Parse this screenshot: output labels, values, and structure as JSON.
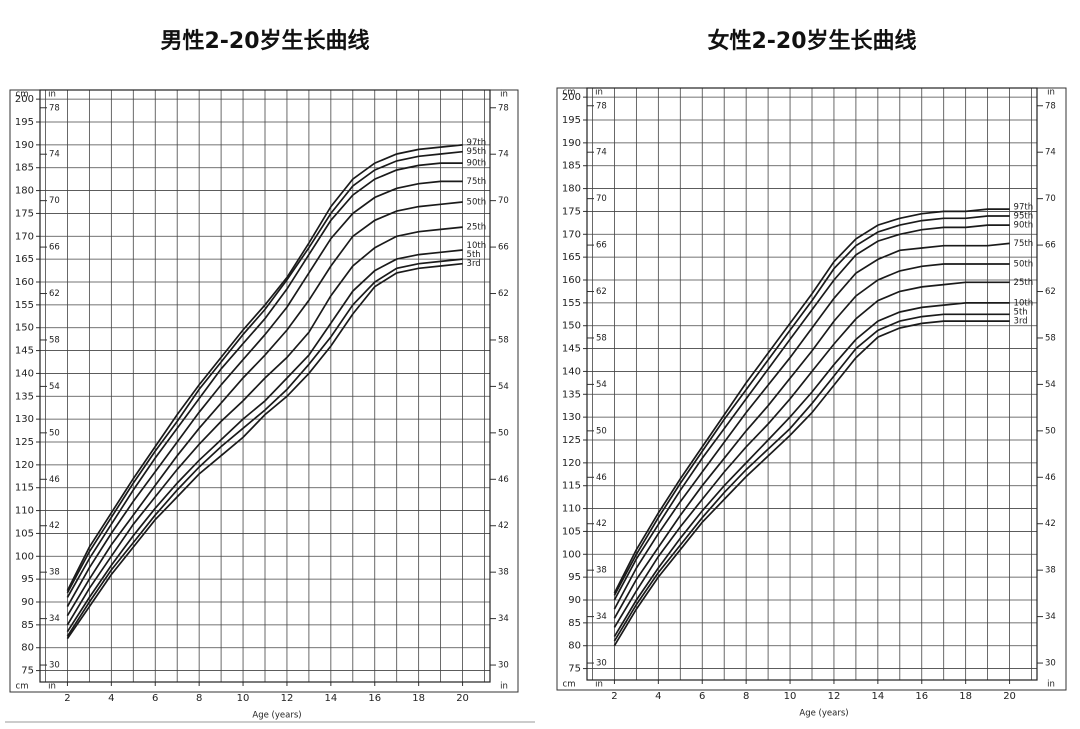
{
  "chart_data": [
    {
      "type": "line",
      "title": "男性2-20岁生长曲线",
      "x_label": "Age (years)",
      "y_unit": "cm",
      "y2_unit": "in",
      "x": [
        2,
        3,
        4,
        5,
        6,
        7,
        8,
        9,
        10,
        11,
        12,
        13,
        14,
        15,
        16,
        17,
        18,
        19,
        20
      ],
      "xlim": [
        0.75,
        21.25
      ],
      "xticks": [
        2,
        4,
        6,
        8,
        10,
        12,
        14,
        16,
        18,
        20
      ],
      "xgrid_minor": [
        1,
        3,
        5,
        7,
        9,
        11,
        13,
        15,
        17,
        19,
        21
      ],
      "ylim": [
        72.5,
        202
      ],
      "yticks": [
        75,
        80,
        85,
        90,
        95,
        100,
        105,
        110,
        115,
        120,
        125,
        130,
        135,
        140,
        145,
        150,
        155,
        160,
        165,
        170,
        175,
        180,
        185,
        190,
        195,
        200
      ],
      "y2lim": [
        28.54,
        79.53
      ],
      "y2ticks": [
        30,
        34,
        38,
        42,
        46,
        50,
        54,
        58,
        62,
        66,
        70,
        74,
        78
      ],
      "grid": true,
      "series": [
        {
          "name": "3rd",
          "color": "#1a1a1a",
          "values": [
            82,
            89,
            96,
            102,
            108,
            113,
            118,
            122,
            126,
            131,
            135,
            140,
            146,
            153,
            159,
            162,
            163,
            163.5,
            164
          ]
        },
        {
          "name": "5th",
          "color": "#1a1a1a",
          "values": [
            82.5,
            90,
            97,
            103,
            109,
            114.5,
            119.5,
            124,
            128,
            132,
            136.5,
            142,
            148,
            155,
            160,
            163,
            164,
            164.5,
            165
          ]
        },
        {
          "name": "10th",
          "color": "#1a1a1a",
          "values": [
            83.5,
            91,
            98,
            104.5,
            110.5,
            116,
            121,
            125.5,
            130,
            134,
            139,
            144,
            151,
            158,
            162.5,
            165,
            166,
            166.5,
            167
          ]
        },
        {
          "name": "25th",
          "color": "#1a1a1a",
          "values": [
            85,
            93,
            100,
            107,
            113,
            119,
            124.5,
            129.5,
            134,
            139,
            143.5,
            149,
            157,
            163.5,
            167.5,
            170,
            171,
            171.5,
            172
          ]
        },
        {
          "name": "50th",
          "color": "#1a1a1a",
          "values": [
            87,
            95,
            102.5,
            109,
            115.5,
            122,
            128,
            133.5,
            139,
            144,
            149.5,
            156,
            163.5,
            170,
            173.5,
            175.5,
            176.5,
            177,
            177.5
          ]
        },
        {
          "name": "75th",
          "color": "#1a1a1a",
          "values": [
            89,
            97.5,
            105,
            112,
            118.5,
            125,
            131.5,
            137.5,
            143,
            148.5,
            154.5,
            162,
            169.5,
            175,
            178.5,
            180.5,
            181.5,
            182,
            182
          ]
        },
        {
          "name": "90th",
          "color": "#1a1a1a",
          "values": [
            91,
            99.5,
            107,
            114.5,
            121.5,
            128,
            134.5,
            141,
            146.5,
            152,
            158.5,
            166,
            173.5,
            179,
            182.5,
            184.5,
            185.5,
            186,
            186
          ]
        },
        {
          "name": "95th",
          "color": "#1a1a1a",
          "values": [
            92,
            101,
            108.5,
            116,
            123,
            129.5,
            136.5,
            142.5,
            148.5,
            154,
            160.5,
            167.5,
            175,
            181,
            184.5,
            186.5,
            187.5,
            188,
            188.5
          ]
        },
        {
          "name": "97th",
          "color": "#1a1a1a",
          "values": [
            92.5,
            102,
            109.5,
            117,
            124,
            131,
            137.5,
            143.5,
            149.5,
            155,
            161,
            168.5,
            176.5,
            182.5,
            186,
            188,
            189,
            189.5,
            190
          ]
        }
      ]
    },
    {
      "type": "line",
      "title": "女性2-20岁生长曲线",
      "x_label": "Age (years)",
      "y_unit": "cm",
      "y2_unit": "in",
      "x": [
        2,
        3,
        4,
        5,
        6,
        7,
        8,
        9,
        10,
        11,
        12,
        13,
        14,
        15,
        16,
        17,
        18,
        19,
        20
      ],
      "xlim": [
        0.75,
        21.25
      ],
      "xticks": [
        2,
        4,
        6,
        8,
        10,
        12,
        14,
        16,
        18,
        20
      ],
      "xgrid_minor": [
        1,
        3,
        5,
        7,
        9,
        11,
        13,
        15,
        17,
        19,
        21
      ],
      "ylim": [
        72.5,
        202
      ],
      "yticks": [
        75,
        80,
        85,
        90,
        95,
        100,
        105,
        110,
        115,
        120,
        125,
        130,
        135,
        140,
        145,
        150,
        155,
        160,
        165,
        170,
        175,
        180,
        185,
        190,
        195,
        200
      ],
      "y2lim": [
        28.54,
        79.53
      ],
      "y2ticks": [
        30,
        34,
        38,
        42,
        46,
        50,
        54,
        58,
        62,
        66,
        70,
        74,
        78
      ],
      "grid": true,
      "series": [
        {
          "name": "3rd",
          "color": "#1a1a1a",
          "values": [
            80,
            88,
            95,
            101,
            107,
            112,
            117,
            121.5,
            126,
            131,
            137,
            143,
            147.5,
            149.5,
            150.5,
            151,
            151,
            151,
            151
          ]
        },
        {
          "name": "5th",
          "color": "#1a1a1a",
          "values": [
            81,
            89,
            96,
            102,
            108,
            113.5,
            118.5,
            123,
            127.5,
            133,
            139,
            145,
            149,
            151,
            152,
            152.5,
            152.5,
            152.5,
            152.5
          ]
        },
        {
          "name": "10th",
          "color": "#1a1a1a",
          "values": [
            82,
            90,
            97,
            103.5,
            109.5,
            115,
            120,
            125,
            130,
            135.5,
            141.5,
            147,
            151,
            153,
            154,
            154.5,
            155,
            155,
            155
          ]
        },
        {
          "name": "25th",
          "color": "#1a1a1a",
          "values": [
            84,
            92,
            99.5,
            106,
            112,
            118,
            123.5,
            128.5,
            134,
            140,
            146,
            151.5,
            155.5,
            157.5,
            158.5,
            159,
            159.5,
            159.5,
            159.5
          ]
        },
        {
          "name": "50th",
          "color": "#1a1a1a",
          "values": [
            86,
            94.5,
            101.5,
            108.5,
            115,
            121,
            127,
            132.5,
            138.5,
            144.5,
            151,
            156.5,
            160,
            162,
            163,
            163.5,
            163.5,
            163.5,
            163.5
          ]
        },
        {
          "name": "75th",
          "color": "#1a1a1a",
          "values": [
            88,
            97,
            104.5,
            111.5,
            118,
            124.5,
            131,
            137,
            143,
            149.5,
            156,
            161.5,
            164.5,
            166.5,
            167,
            167.5,
            167.5,
            167.5,
            168
          ]
        },
        {
          "name": "90th",
          "color": "#1a1a1a",
          "values": [
            90,
            99,
            106.5,
            114,
            121,
            127.5,
            134,
            140.5,
            147,
            153.5,
            160,
            165.5,
            168.5,
            170,
            171,
            171.5,
            171.5,
            172,
            172
          ]
        },
        {
          "name": "95th",
          "color": "#1a1a1a",
          "values": [
            91,
            100,
            108,
            115.5,
            122.5,
            129.5,
            136,
            142.5,
            149,
            155.5,
            162.5,
            167.5,
            170.5,
            172,
            173,
            173.5,
            173.5,
            174,
            174
          ]
        },
        {
          "name": "97th",
          "color": "#1a1a1a",
          "values": [
            91.5,
            101,
            109,
            116.5,
            123.5,
            130.5,
            137.5,
            144,
            150.5,
            157,
            164,
            169,
            172,
            173.5,
            174.5,
            175,
            175,
            175.5,
            175.5
          ]
        }
      ]
    }
  ]
}
